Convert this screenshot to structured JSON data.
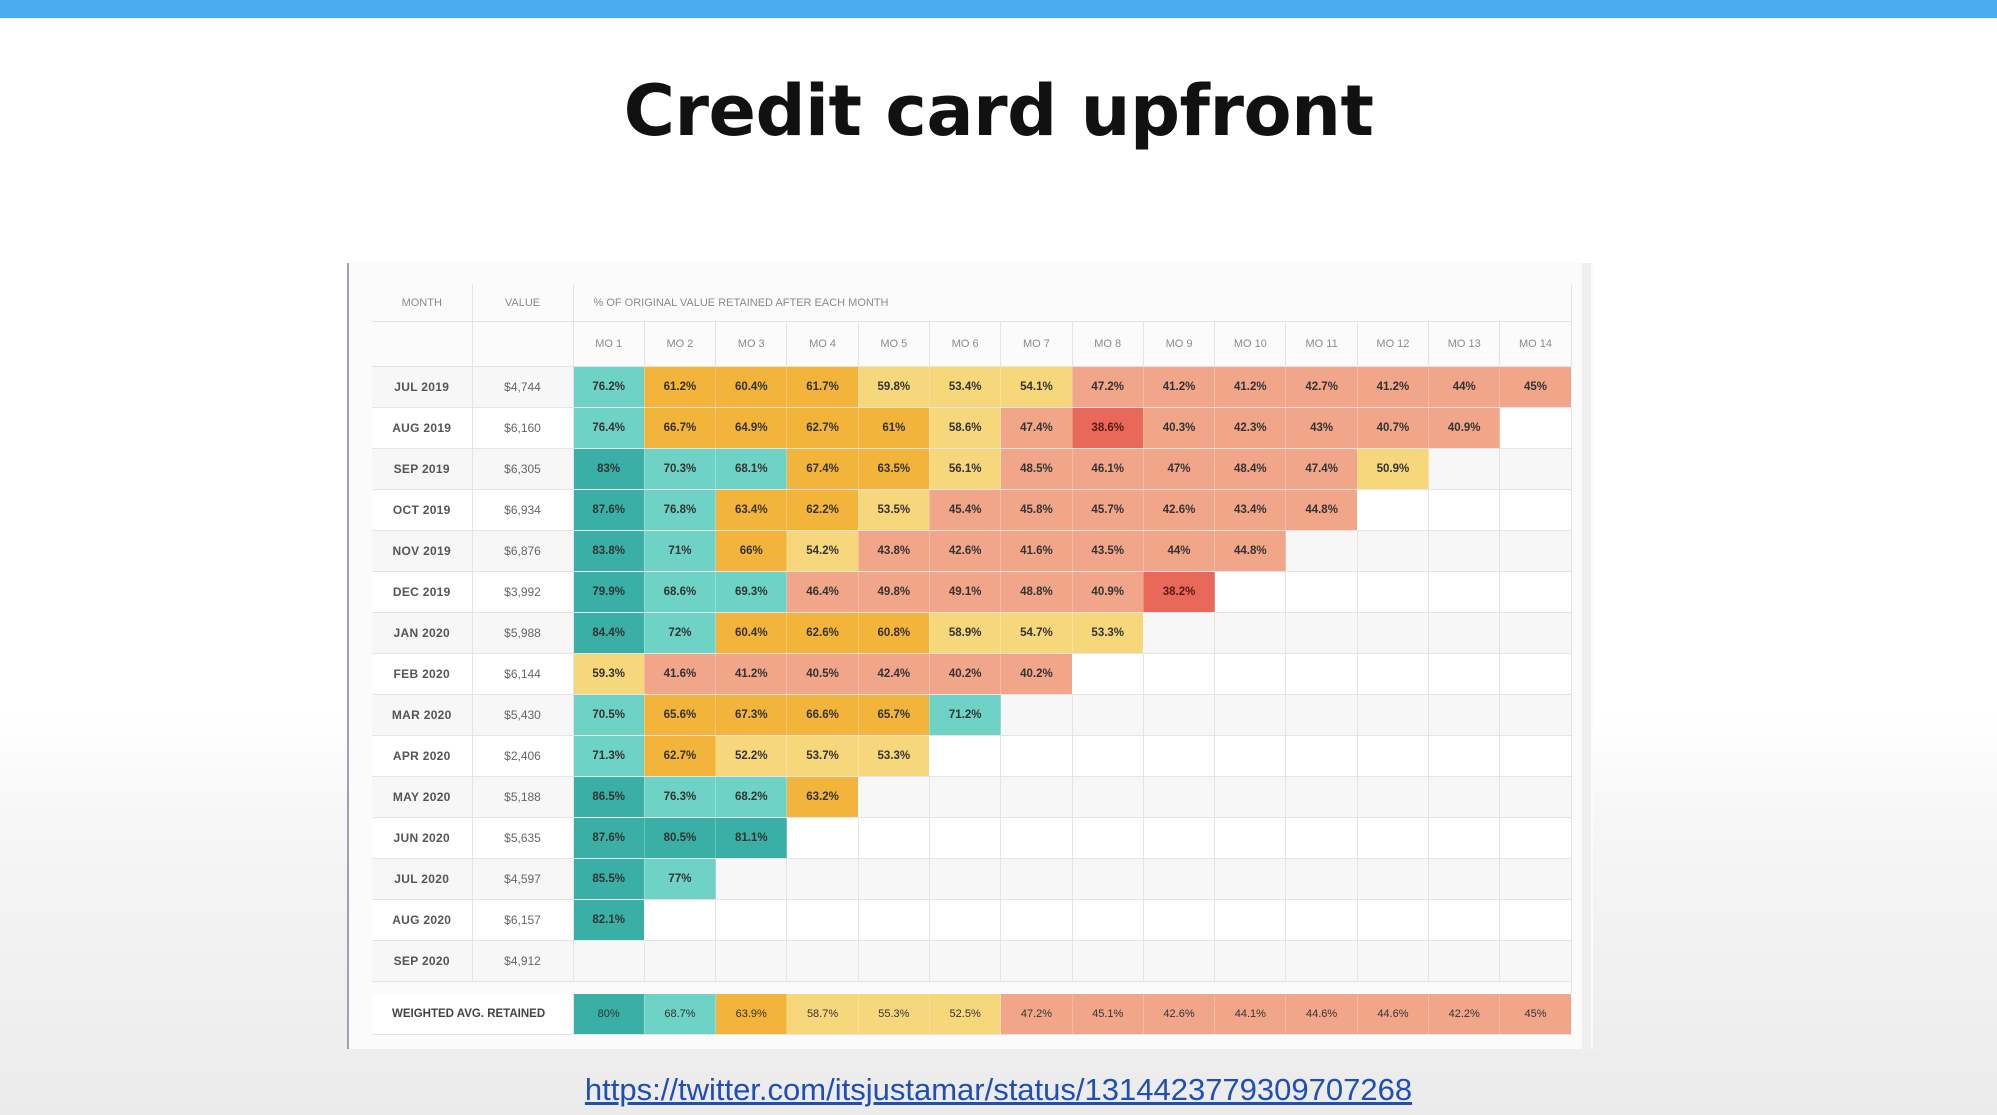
{
  "slide": {
    "title": "Credit card upfront",
    "link": "https://twitter.com/itsjustamar/status/1314423779309707268"
  },
  "chart_data": {
    "type": "table",
    "columns": [
      "MONTH",
      "VALUE",
      "% OF ORIGINAL VALUE RETAINED AFTER EACH MONTH"
    ],
    "months": [
      "MO 1",
      "MO 2",
      "MO 3",
      "MO 4",
      "MO 5",
      "MO 6",
      "MO 7",
      "MO 8",
      "MO 9",
      "MO 10",
      "MO 11",
      "MO 12",
      "MO 13",
      "MO 14"
    ],
    "rows": [
      {
        "month": "JUL 2019",
        "value": "$4,744",
        "retained": [
          "76.2%",
          "61.2%",
          "60.4%",
          "61.7%",
          "59.8%",
          "53.4%",
          "54.1%",
          "47.2%",
          "41.2%",
          "41.2%",
          "42.7%",
          "41.2%",
          "44%",
          "45%"
        ]
      },
      {
        "month": "AUG 2019",
        "value": "$6,160",
        "retained": [
          "76.4%",
          "66.7%",
          "64.9%",
          "62.7%",
          "61%",
          "58.6%",
          "47.4%",
          "38.6%",
          "40.3%",
          "42.3%",
          "43%",
          "40.7%",
          "40.9%"
        ]
      },
      {
        "month": "SEP 2019",
        "value": "$6,305",
        "retained": [
          "83%",
          "70.3%",
          "68.1%",
          "67.4%",
          "63.5%",
          "56.1%",
          "48.5%",
          "46.1%",
          "47%",
          "48.4%",
          "47.4%",
          "50.9%"
        ]
      },
      {
        "month": "OCT 2019",
        "value": "$6,934",
        "retained": [
          "87.6%",
          "76.8%",
          "63.4%",
          "62.2%",
          "53.5%",
          "45.4%",
          "45.8%",
          "45.7%",
          "42.6%",
          "43.4%",
          "44.8%"
        ]
      },
      {
        "month": "NOV 2019",
        "value": "$6,876",
        "retained": [
          "83.8%",
          "71%",
          "66%",
          "54.2%",
          "43.8%",
          "42.6%",
          "41.6%",
          "43.5%",
          "44%",
          "44.8%"
        ]
      },
      {
        "month": "DEC 2019",
        "value": "$3,992",
        "retained": [
          "79.9%",
          "68.6%",
          "69.3%",
          "46.4%",
          "49.8%",
          "49.1%",
          "48.8%",
          "40.9%",
          "38.2%"
        ]
      },
      {
        "month": "JAN 2020",
        "value": "$5,988",
        "retained": [
          "84.4%",
          "72%",
          "60.4%",
          "62.6%",
          "60.8%",
          "58.9%",
          "54.7%",
          "53.3%"
        ]
      },
      {
        "month": "FEB 2020",
        "value": "$6,144",
        "retained": [
          "59.3%",
          "41.6%",
          "41.2%",
          "40.5%",
          "42.4%",
          "40.2%",
          "40.2%"
        ]
      },
      {
        "month": "MAR 2020",
        "value": "$5,430",
        "retained": [
          "70.5%",
          "65.6%",
          "67.3%",
          "66.6%",
          "65.7%",
          "71.2%"
        ]
      },
      {
        "month": "APR 2020",
        "value": "$2,406",
        "retained": [
          "71.3%",
          "62.7%",
          "52.2%",
          "53.7%",
          "53.3%"
        ]
      },
      {
        "month": "MAY 2020",
        "value": "$5,188",
        "retained": [
          "86.5%",
          "76.3%",
          "68.2%",
          "63.2%"
        ]
      },
      {
        "month": "JUN 2020",
        "value": "$5,635",
        "retained": [
          "87.6%",
          "80.5%",
          "81.1%"
        ]
      },
      {
        "month": "JUL 2020",
        "value": "$4,597",
        "retained": [
          "85.5%",
          "77%"
        ]
      },
      {
        "month": "AUG 2020",
        "value": "$6,157",
        "retained": [
          "82.1%"
        ]
      },
      {
        "month": "SEP 2020",
        "value": "$4,912",
        "retained": []
      }
    ],
    "weighted_avg": {
      "label": "WEIGHTED AVG. RETAINED",
      "retained": [
        "80%",
        "68.7%",
        "63.9%",
        "58.7%",
        "55.3%",
        "52.5%",
        "47.2%",
        "45.1%",
        "42.6%",
        "44.1%",
        "44.6%",
        "44.6%",
        "42.2%",
        "45%"
      ]
    },
    "colors": {
      "dark_teal": "#3aafa6",
      "teal": "#6fd2c6",
      "orange": "#f2b43a",
      "yellow": "#f7d77c",
      "salmon": "#f1a68a",
      "red": "#e8685a"
    }
  }
}
